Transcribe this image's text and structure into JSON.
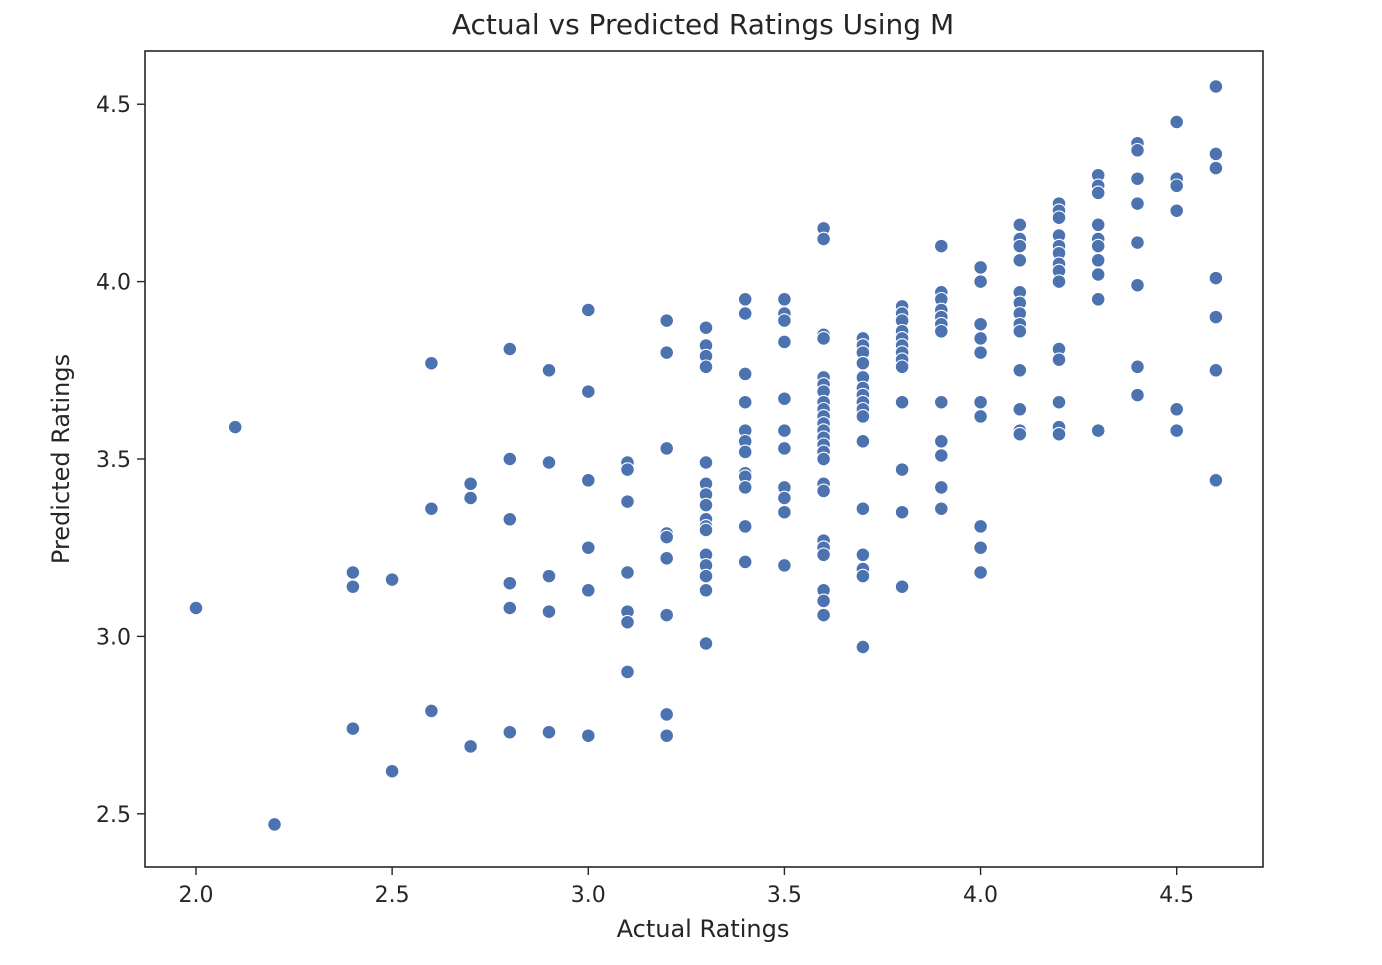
{
  "chart_data": {
    "type": "scatter",
    "title": "Actual vs Predicted Ratings Using M",
    "xlabel": "Actual Ratings",
    "ylabel": "Predicted Ratings",
    "xlim": [
      1.87,
      4.72
    ],
    "ylim": [
      2.35,
      4.65
    ],
    "xticks": [
      "2.0",
      "2.5",
      "3.0",
      "3.5",
      "4.0",
      "4.5"
    ],
    "yticks": [
      "2.5",
      "3.0",
      "3.5",
      "4.0",
      "4.5"
    ],
    "grid": false,
    "legend": "none",
    "marker_color": "#4c72b0",
    "marker_edge_color": "#ffffff",
    "points": [
      [
        2.0,
        3.08
      ],
      [
        2.1,
        3.59
      ],
      [
        2.2,
        2.47
      ],
      [
        2.4,
        3.18
      ],
      [
        2.4,
        3.14
      ],
      [
        2.4,
        2.74
      ],
      [
        2.5,
        3.16
      ],
      [
        2.5,
        2.62
      ],
      [
        2.6,
        3.77
      ],
      [
        2.6,
        3.36
      ],
      [
        2.6,
        2.79
      ],
      [
        2.7,
        3.43
      ],
      [
        2.7,
        3.39
      ],
      [
        2.7,
        2.69
      ],
      [
        2.8,
        3.81
      ],
      [
        2.8,
        3.5
      ],
      [
        2.8,
        3.33
      ],
      [
        2.8,
        3.15
      ],
      [
        2.8,
        3.08
      ],
      [
        2.8,
        2.73
      ],
      [
        2.9,
        3.75
      ],
      [
        2.9,
        3.49
      ],
      [
        2.9,
        3.17
      ],
      [
        2.9,
        3.07
      ],
      [
        2.9,
        2.73
      ],
      [
        3.0,
        3.92
      ],
      [
        3.0,
        3.69
      ],
      [
        3.0,
        3.44
      ],
      [
        3.0,
        3.25
      ],
      [
        3.0,
        3.13
      ],
      [
        3.0,
        2.72
      ],
      [
        3.1,
        3.49
      ],
      [
        3.1,
        3.47
      ],
      [
        3.1,
        3.38
      ],
      [
        3.1,
        3.18
      ],
      [
        3.1,
        3.07
      ],
      [
        3.1,
        3.04
      ],
      [
        3.1,
        2.9
      ],
      [
        3.2,
        3.89
      ],
      [
        3.2,
        3.8
      ],
      [
        3.2,
        3.53
      ],
      [
        3.2,
        3.29
      ],
      [
        3.2,
        3.28
      ],
      [
        3.2,
        3.22
      ],
      [
        3.2,
        3.06
      ],
      [
        3.2,
        2.78
      ],
      [
        3.2,
        2.72
      ],
      [
        3.3,
        3.87
      ],
      [
        3.3,
        3.82
      ],
      [
        3.3,
        3.79
      ],
      [
        3.3,
        3.76
      ],
      [
        3.3,
        3.49
      ],
      [
        3.3,
        3.43
      ],
      [
        3.3,
        3.4
      ],
      [
        3.3,
        3.37
      ],
      [
        3.3,
        3.33
      ],
      [
        3.3,
        3.31
      ],
      [
        3.3,
        3.3
      ],
      [
        3.3,
        3.23
      ],
      [
        3.3,
        3.2
      ],
      [
        3.3,
        3.17
      ],
      [
        3.3,
        3.13
      ],
      [
        3.3,
        2.98
      ],
      [
        3.4,
        3.95
      ],
      [
        3.4,
        3.91
      ],
      [
        3.4,
        3.74
      ],
      [
        3.4,
        3.66
      ],
      [
        3.4,
        3.58
      ],
      [
        3.4,
        3.55
      ],
      [
        3.4,
        3.52
      ],
      [
        3.4,
        3.46
      ],
      [
        3.4,
        3.45
      ],
      [
        3.4,
        3.42
      ],
      [
        3.4,
        3.31
      ],
      [
        3.4,
        3.21
      ],
      [
        3.5,
        3.95
      ],
      [
        3.5,
        3.91
      ],
      [
        3.5,
        3.89
      ],
      [
        3.5,
        3.83
      ],
      [
        3.5,
        3.67
      ],
      [
        3.5,
        3.58
      ],
      [
        3.5,
        3.53
      ],
      [
        3.5,
        3.42
      ],
      [
        3.5,
        3.39
      ],
      [
        3.5,
        3.35
      ],
      [
        3.5,
        3.2
      ],
      [
        3.6,
        4.15
      ],
      [
        3.6,
        4.12
      ],
      [
        3.6,
        3.85
      ],
      [
        3.6,
        3.84
      ],
      [
        3.6,
        3.73
      ],
      [
        3.6,
        3.71
      ],
      [
        3.6,
        3.69
      ],
      [
        3.6,
        3.66
      ],
      [
        3.6,
        3.64
      ],
      [
        3.6,
        3.62
      ],
      [
        3.6,
        3.6
      ],
      [
        3.6,
        3.58
      ],
      [
        3.6,
        3.56
      ],
      [
        3.6,
        3.54
      ],
      [
        3.6,
        3.52
      ],
      [
        3.6,
        3.5
      ],
      [
        3.6,
        3.43
      ],
      [
        3.6,
        3.41
      ],
      [
        3.6,
        3.27
      ],
      [
        3.6,
        3.25
      ],
      [
        3.6,
        3.23
      ],
      [
        3.6,
        3.13
      ],
      [
        3.6,
        3.1
      ],
      [
        3.6,
        3.06
      ],
      [
        3.7,
        3.84
      ],
      [
        3.7,
        3.82
      ],
      [
        3.7,
        3.8
      ],
      [
        3.7,
        3.77
      ],
      [
        3.7,
        3.73
      ],
      [
        3.7,
        3.7
      ],
      [
        3.7,
        3.68
      ],
      [
        3.7,
        3.66
      ],
      [
        3.7,
        3.64
      ],
      [
        3.7,
        3.62
      ],
      [
        3.7,
        3.55
      ],
      [
        3.7,
        3.36
      ],
      [
        3.7,
        3.23
      ],
      [
        3.7,
        3.19
      ],
      [
        3.7,
        3.17
      ],
      [
        3.7,
        2.97
      ],
      [
        3.8,
        3.93
      ],
      [
        3.8,
        3.91
      ],
      [
        3.8,
        3.89
      ],
      [
        3.8,
        3.86
      ],
      [
        3.8,
        3.84
      ],
      [
        3.8,
        3.82
      ],
      [
        3.8,
        3.8
      ],
      [
        3.8,
        3.78
      ],
      [
        3.8,
        3.76
      ],
      [
        3.8,
        3.66
      ],
      [
        3.8,
        3.47
      ],
      [
        3.8,
        3.35
      ],
      [
        3.8,
        3.14
      ],
      [
        3.9,
        4.1
      ],
      [
        3.9,
        3.97
      ],
      [
        3.9,
        3.95
      ],
      [
        3.9,
        3.92
      ],
      [
        3.9,
        3.9
      ],
      [
        3.9,
        3.88
      ],
      [
        3.9,
        3.86
      ],
      [
        3.9,
        3.66
      ],
      [
        3.9,
        3.55
      ],
      [
        3.9,
        3.51
      ],
      [
        3.9,
        3.42
      ],
      [
        3.9,
        3.36
      ],
      [
        4.0,
        4.04
      ],
      [
        4.0,
        4.0
      ],
      [
        4.0,
        3.88
      ],
      [
        4.0,
        3.84
      ],
      [
        4.0,
        3.8
      ],
      [
        4.0,
        3.66
      ],
      [
        4.0,
        3.62
      ],
      [
        4.0,
        3.31
      ],
      [
        4.0,
        3.25
      ],
      [
        4.0,
        3.18
      ],
      [
        4.1,
        4.16
      ],
      [
        4.1,
        4.12
      ],
      [
        4.1,
        4.1
      ],
      [
        4.1,
        4.06
      ],
      [
        4.1,
        3.97
      ],
      [
        4.1,
        3.94
      ],
      [
        4.1,
        3.91
      ],
      [
        4.1,
        3.88
      ],
      [
        4.1,
        3.86
      ],
      [
        4.1,
        3.75
      ],
      [
        4.1,
        3.64
      ],
      [
        4.1,
        3.58
      ],
      [
        4.1,
        3.57
      ],
      [
        4.2,
        4.22
      ],
      [
        4.2,
        4.2
      ],
      [
        4.2,
        4.18
      ],
      [
        4.2,
        4.13
      ],
      [
        4.2,
        4.1
      ],
      [
        4.2,
        4.08
      ],
      [
        4.2,
        4.05
      ],
      [
        4.2,
        4.03
      ],
      [
        4.2,
        4.0
      ],
      [
        4.2,
        3.81
      ],
      [
        4.2,
        3.78
      ],
      [
        4.2,
        3.66
      ],
      [
        4.2,
        3.59
      ],
      [
        4.2,
        3.57
      ],
      [
        4.3,
        4.3
      ],
      [
        4.3,
        4.27
      ],
      [
        4.3,
        4.25
      ],
      [
        4.3,
        4.16
      ],
      [
        4.3,
        4.12
      ],
      [
        4.3,
        4.1
      ],
      [
        4.3,
        4.06
      ],
      [
        4.3,
        4.02
      ],
      [
        4.3,
        3.95
      ],
      [
        4.3,
        3.58
      ],
      [
        4.4,
        4.39
      ],
      [
        4.4,
        4.37
      ],
      [
        4.4,
        4.29
      ],
      [
        4.4,
        4.22
      ],
      [
        4.4,
        4.11
      ],
      [
        4.4,
        3.99
      ],
      [
        4.4,
        3.76
      ],
      [
        4.4,
        3.68
      ],
      [
        4.5,
        4.45
      ],
      [
        4.5,
        4.29
      ],
      [
        4.5,
        4.27
      ],
      [
        4.5,
        4.2
      ],
      [
        4.5,
        3.64
      ],
      [
        4.5,
        3.58
      ],
      [
        4.6,
        4.55
      ],
      [
        4.6,
        4.36
      ],
      [
        4.6,
        4.32
      ],
      [
        4.6,
        4.01
      ],
      [
        4.6,
        3.9
      ],
      [
        4.6,
        3.75
      ],
      [
        4.6,
        3.44
      ]
    ]
  }
}
